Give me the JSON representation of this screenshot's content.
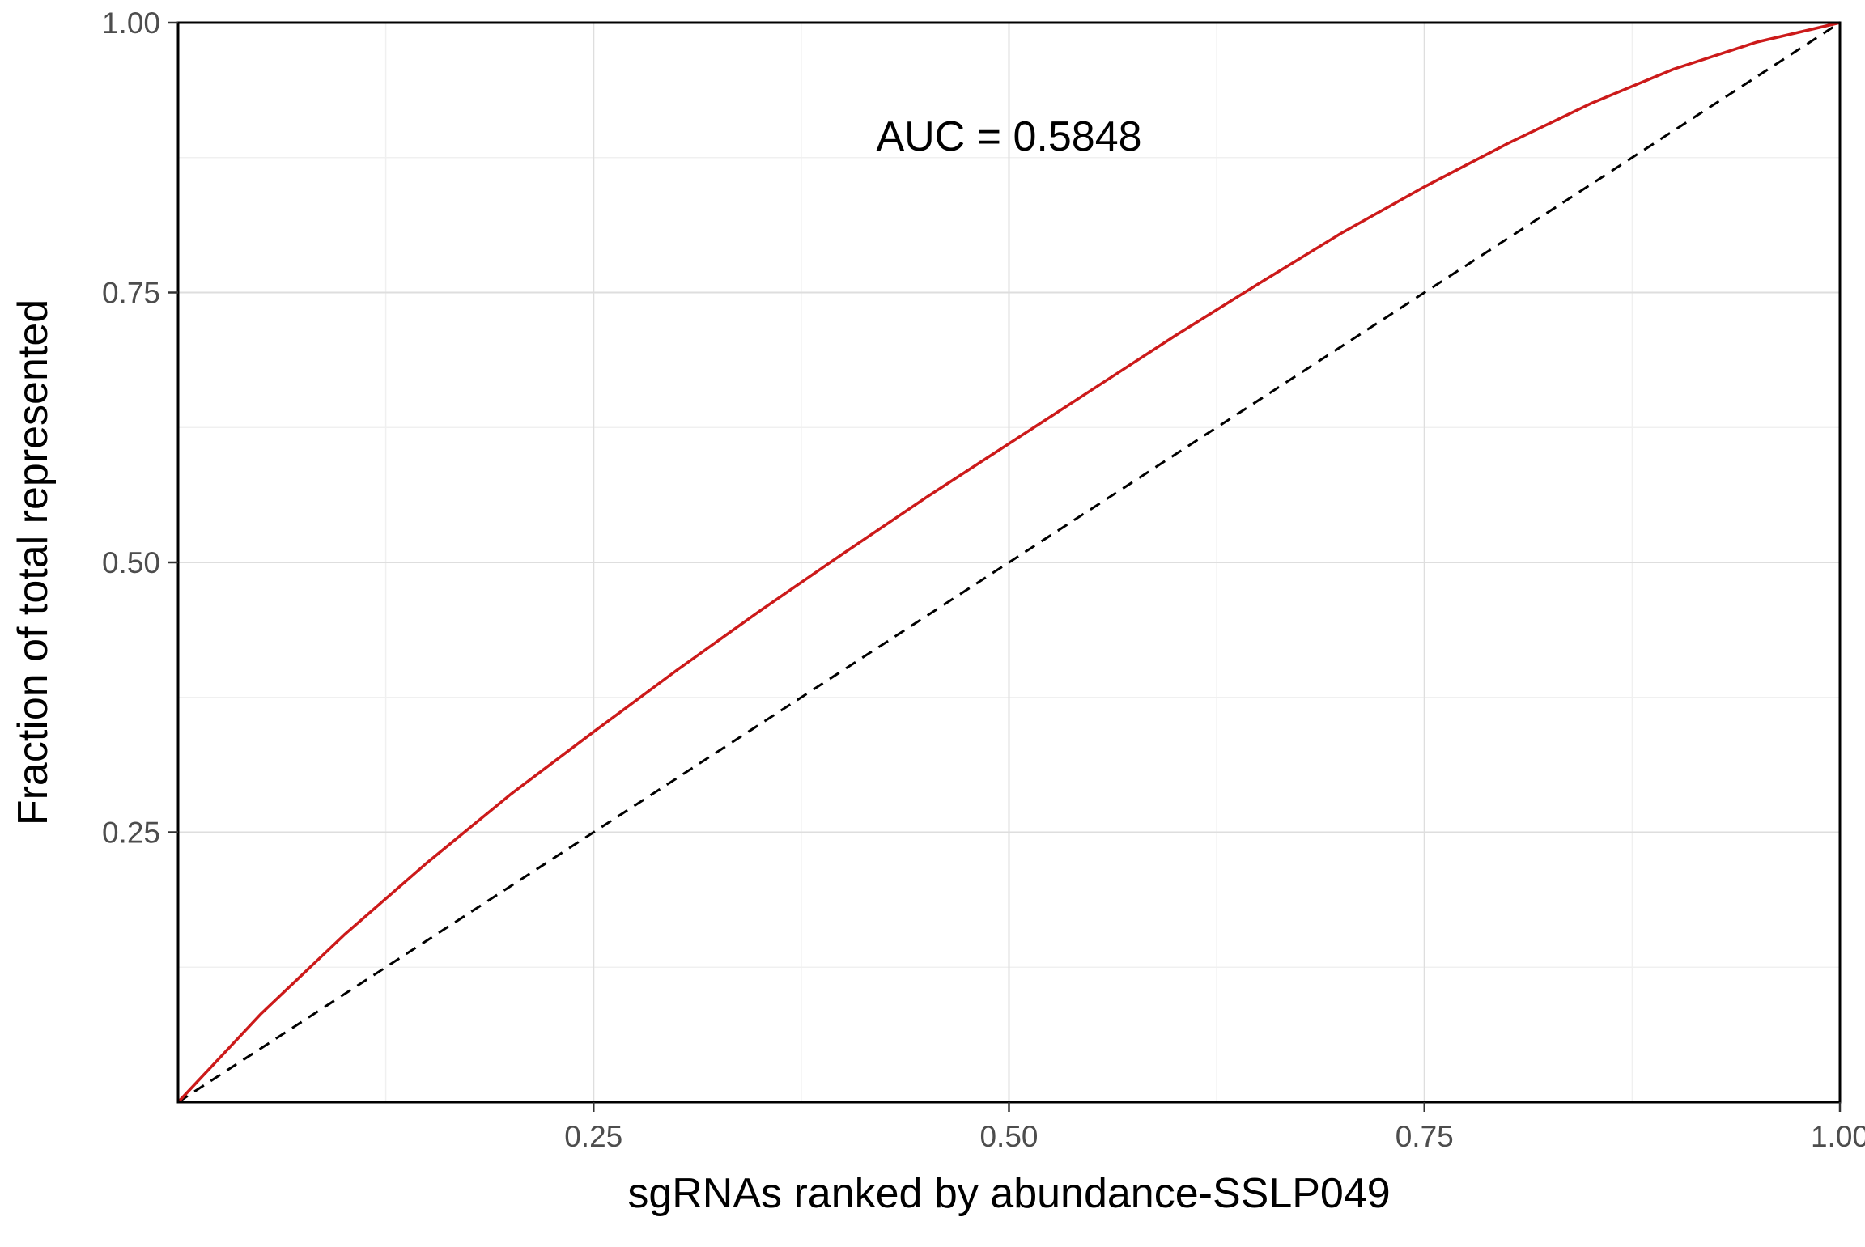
{
  "chart_data": {
    "type": "line",
    "xlabel": "sgRNAs ranked by abundance-SSLP049",
    "ylabel": "Fraction of total represented",
    "xlim": [
      0,
      1
    ],
    "ylim": [
      0,
      1
    ],
    "x_ticks": [
      0.25,
      0.5,
      0.75,
      1.0
    ],
    "x_tick_labels": [
      "0.25",
      "0.50",
      "0.75",
      "1.00"
    ],
    "y_ticks": [
      0.25,
      0.5,
      0.75,
      1.0
    ],
    "y_tick_labels": [
      "0.25",
      "0.50",
      "0.75",
      "1.00"
    ],
    "grid": true,
    "annotation": {
      "text": "AUC = 0.5848",
      "x": 0.5,
      "y": 0.895
    },
    "series": [
      {
        "style": "solid",
        "color": "#cc1a1a",
        "x": [
          0,
          0.05,
          0.1,
          0.15,
          0.2,
          0.25,
          0.3,
          0.35,
          0.4,
          0.45,
          0.5,
          0.55,
          0.6,
          0.65,
          0.7,
          0.75,
          0.8,
          0.85,
          0.9,
          0.95,
          1.0
        ],
        "y": [
          0,
          0.082,
          0.155,
          0.222,
          0.285,
          0.343,
          0.4,
          0.455,
          0.508,
          0.56,
          0.61,
          0.66,
          0.71,
          0.758,
          0.805,
          0.848,
          0.888,
          0.925,
          0.957,
          0.982,
          1.0
        ]
      },
      {
        "style": "dashed",
        "color": "#000000",
        "x": [
          0,
          1
        ],
        "y": [
          0,
          1
        ]
      }
    ]
  }
}
